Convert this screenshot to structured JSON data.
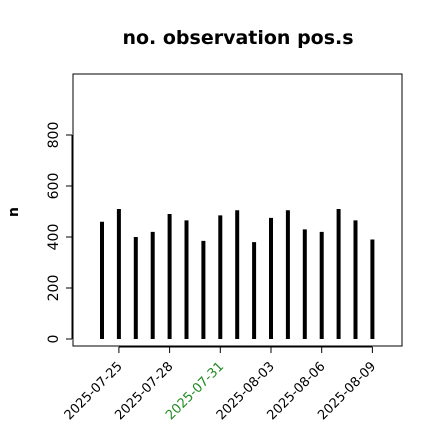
{
  "chart_data": {
    "type": "bar",
    "title": "no. observation pos.s",
    "xlabel": "",
    "ylabel": "n",
    "ylim": [
      0,
      1000
    ],
    "yticks": [
      0,
      200,
      400,
      600,
      800
    ],
    "categories": [
      "2025-07-24",
      "2025-07-25",
      "2025-07-26",
      "2025-07-27",
      "2025-07-28",
      "2025-07-29",
      "2025-07-30",
      "2025-07-31",
      "2025-08-01",
      "2025-08-02",
      "2025-08-03",
      "2025-08-04",
      "2025-08-05",
      "2025-08-06",
      "2025-08-07",
      "2025-08-08",
      "2025-08-09",
      "2025-08-10"
    ],
    "values": [
      460,
      510,
      400,
      420,
      490,
      465,
      385,
      485,
      505,
      380,
      475,
      505,
      430,
      420,
      510,
      465,
      390,
      0
    ],
    "xtick_labels": [
      {
        "date": "2025-07-25",
        "label": "2025-07-25",
        "color": "#000000"
      },
      {
        "date": "2025-07-28",
        "label": "2025-07-28",
        "color": "#000000"
      },
      {
        "date": "2025-07-31",
        "label": "2025-07-31",
        "color": "#228b22"
      },
      {
        "date": "2025-08-03",
        "label": "2025-08-03",
        "color": "#000000"
      },
      {
        "date": "2025-08-06",
        "label": "2025-08-06",
        "color": "#000000"
      },
      {
        "date": "2025-08-09",
        "label": "2025-08-09",
        "color": "#000000"
      }
    ],
    "bar_color": "#000000",
    "grid": false,
    "legend": "none"
  }
}
